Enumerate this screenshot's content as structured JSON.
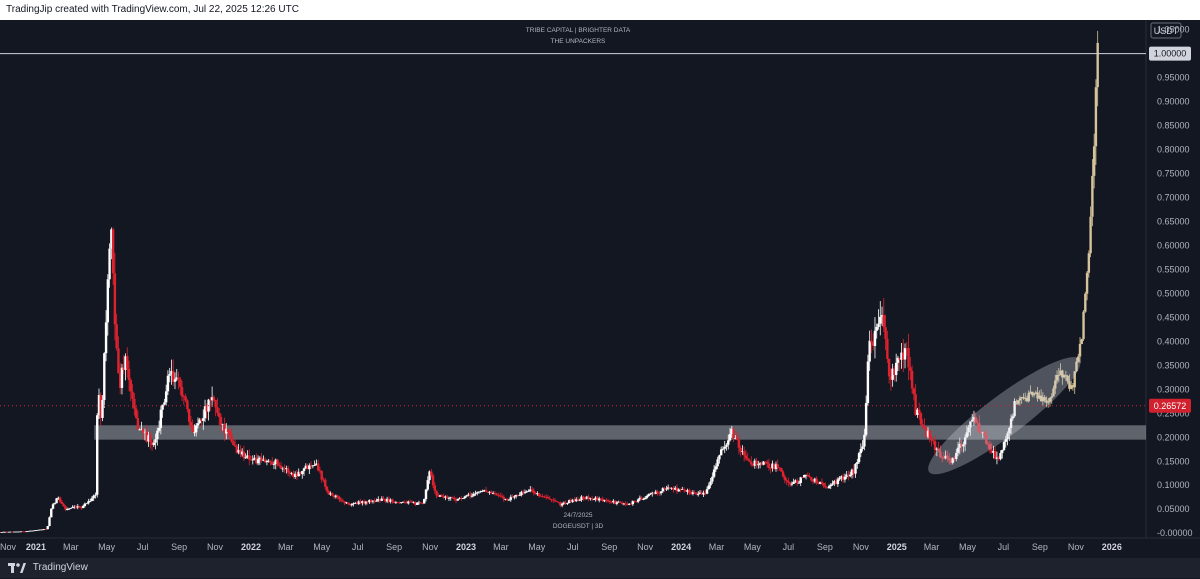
{
  "header": {
    "caption": "TradingJip created with TradingView.com, Jul 22, 2025 12:26 UTC"
  },
  "footer": {
    "brand": "TradingView",
    "logo_icon": "tradingview-logo-icon"
  },
  "colors": {
    "background": "#131722",
    "up_candle": "#ffffff",
    "down_candle": "#e0222f",
    "projection": "#d6c39a",
    "support_zone": "#c9ccd3",
    "current_price": "#d1202e"
  },
  "chart_data": {
    "type": "candlestick",
    "symbol": "DOGEUSDT | 3D",
    "unit": "USDT",
    "watermark": {
      "top_line1": "TRIBE CAPITAL | BRIGHTER DATA",
      "top_line2": "THE UNPACKERS",
      "bottom_date": "24/7/2025",
      "bottom_symbol": "DOGEUSDT | 3D"
    },
    "y_axis": {
      "ticks": [
        "-0.00000",
        "0.05000",
        "0.10000",
        "0.15000",
        "0.20000",
        "0.25000",
        "0.30000",
        "0.35000",
        "0.40000",
        "0.45000",
        "0.50000",
        "0.55000",
        "0.60000",
        "0.65000",
        "0.70000",
        "0.75000",
        "0.80000",
        "0.85000",
        "0.90000",
        "0.95000",
        "1.00000",
        "1.05000"
      ],
      "range": [
        -0.01,
        1.07
      ]
    },
    "x_axis": {
      "range": [
        "2020-11-01",
        "2026-02-28"
      ],
      "ticks": [
        {
          "label": "Nov",
          "date": "2020-11-01",
          "year": false
        },
        {
          "label": "2021",
          "date": "2021-01-01",
          "year": true
        },
        {
          "label": "Mar",
          "date": "2021-03-01",
          "year": false
        },
        {
          "label": "May",
          "date": "2021-05-01",
          "year": false
        },
        {
          "label": "Jul",
          "date": "2021-07-01",
          "year": false
        },
        {
          "label": "Sep",
          "date": "2021-09-01",
          "year": false
        },
        {
          "label": "Nov",
          "date": "2021-11-01",
          "year": false
        },
        {
          "label": "2022",
          "date": "2022-01-01",
          "year": true
        },
        {
          "label": "Mar",
          "date": "2022-03-01",
          "year": false
        },
        {
          "label": "May",
          "date": "2022-05-01",
          "year": false
        },
        {
          "label": "Jul",
          "date": "2022-07-01",
          "year": false
        },
        {
          "label": "Sep",
          "date": "2022-09-01",
          "year": false
        },
        {
          "label": "Nov",
          "date": "2022-11-01",
          "year": false
        },
        {
          "label": "2023",
          "date": "2023-01-01",
          "year": true
        },
        {
          "label": "Mar",
          "date": "2023-03-01",
          "year": false
        },
        {
          "label": "May",
          "date": "2023-05-01",
          "year": false
        },
        {
          "label": "Jul",
          "date": "2023-07-01",
          "year": false
        },
        {
          "label": "Sep",
          "date": "2023-09-01",
          "year": false
        },
        {
          "label": "Nov",
          "date": "2023-11-01",
          "year": false
        },
        {
          "label": "2024",
          "date": "2024-01-01",
          "year": true
        },
        {
          "label": "Mar",
          "date": "2024-03-01",
          "year": false
        },
        {
          "label": "May",
          "date": "2024-05-01",
          "year": false
        },
        {
          "label": "Jul",
          "date": "2024-07-01",
          "year": false
        },
        {
          "label": "Sep",
          "date": "2024-09-01",
          "year": false
        },
        {
          "label": "Nov",
          "date": "2024-11-01",
          "year": false
        },
        {
          "label": "2025",
          "date": "2025-01-01",
          "year": true
        },
        {
          "label": "Mar",
          "date": "2025-03-01",
          "year": false
        },
        {
          "label": "May",
          "date": "2025-05-01",
          "year": false
        },
        {
          "label": "Jul",
          "date": "2025-07-01",
          "year": false
        },
        {
          "label": "Sep",
          "date": "2025-09-01",
          "year": false
        },
        {
          "label": "Nov",
          "date": "2025-11-01",
          "year": false
        },
        {
          "label": "2026",
          "date": "2026-01-01",
          "year": true
        }
      ]
    },
    "horizontal_line": {
      "value": 1.0,
      "label": "1.00000"
    },
    "current_price": {
      "value": 0.26572,
      "label": "0.26572"
    },
    "support_zone": {
      "low": 0.195,
      "high": 0.225,
      "from": "2021-04-10",
      "to": "2026-02-28"
    },
    "highlight_ellipse": {
      "from": "2025-03-05",
      "to": "2025-10-30",
      "low_start": 0.135,
      "high_end": 0.355
    },
    "price_path": [
      [
        "2020-11-01",
        0.0025
      ],
      [
        "2020-12-15",
        0.004
      ],
      [
        "2021-01-20",
        0.009
      ],
      [
        "2021-01-28",
        0.055
      ],
      [
        "2021-02-08",
        0.075
      ],
      [
        "2021-02-20",
        0.05
      ],
      [
        "2021-03-20",
        0.055
      ],
      [
        "2021-04-12",
        0.08
      ],
      [
        "2021-04-16",
        0.3
      ],
      [
        "2021-04-22",
        0.24
      ],
      [
        "2021-05-02",
        0.5
      ],
      [
        "2021-05-08",
        0.63
      ],
      [
        "2021-05-14",
        0.48
      ],
      [
        "2021-05-22",
        0.3
      ],
      [
        "2021-06-01",
        0.37
      ],
      [
        "2021-06-20",
        0.23
      ],
      [
        "2021-07-20",
        0.18
      ],
      [
        "2021-08-16",
        0.33
      ],
      [
        "2021-09-06",
        0.3
      ],
      [
        "2021-09-22",
        0.21
      ],
      [
        "2021-10-28",
        0.28
      ],
      [
        "2021-11-15",
        0.22
      ],
      [
        "2021-12-10",
        0.17
      ],
      [
        "2022-01-10",
        0.15
      ],
      [
        "2022-02-10",
        0.15
      ],
      [
        "2022-03-15",
        0.12
      ],
      [
        "2022-04-20",
        0.15
      ],
      [
        "2022-05-12",
        0.085
      ],
      [
        "2022-06-15",
        0.06
      ],
      [
        "2022-08-10",
        0.07
      ],
      [
        "2022-10-20",
        0.06
      ],
      [
        "2022-11-01",
        0.13
      ],
      [
        "2022-11-10",
        0.08
      ],
      [
        "2022-12-20",
        0.07
      ],
      [
        "2023-02-01",
        0.09
      ],
      [
        "2023-03-10",
        0.07
      ],
      [
        "2023-04-18",
        0.09
      ],
      [
        "2023-06-10",
        0.06
      ],
      [
        "2023-07-20",
        0.075
      ],
      [
        "2023-10-01",
        0.06
      ],
      [
        "2023-12-10",
        0.095
      ],
      [
        "2024-02-10",
        0.08
      ],
      [
        "2024-03-05",
        0.16
      ],
      [
        "2024-03-28",
        0.21
      ],
      [
        "2024-04-20",
        0.15
      ],
      [
        "2024-06-10",
        0.14
      ],
      [
        "2024-07-05",
        0.1
      ],
      [
        "2024-08-01",
        0.12
      ],
      [
        "2024-09-05",
        0.095
      ],
      [
        "2024-10-20",
        0.13
      ],
      [
        "2024-11-08",
        0.2
      ],
      [
        "2024-11-14",
        0.39
      ],
      [
        "2024-12-08",
        0.45
      ],
      [
        "2024-12-20",
        0.32
      ],
      [
        "2025-01-18",
        0.38
      ],
      [
        "2025-02-03",
        0.25
      ],
      [
        "2025-03-10",
        0.17
      ],
      [
        "2025-04-07",
        0.15
      ],
      [
        "2025-05-12",
        0.24
      ],
      [
        "2025-06-22",
        0.15
      ],
      [
        "2025-07-20",
        0.2657
      ]
    ],
    "projection_path": [
      [
        "2025-07-23",
        0.27
      ],
      [
        "2025-08-20",
        0.29
      ],
      [
        "2025-09-15",
        0.27
      ],
      [
        "2025-10-05",
        0.34
      ],
      [
        "2025-10-25",
        0.3
      ],
      [
        "2025-11-05",
        0.37
      ],
      [
        "2025-11-12",
        0.42
      ],
      [
        "2025-11-20",
        0.55
      ],
      [
        "2025-11-26",
        0.65
      ],
      [
        "2025-12-02",
        0.8
      ],
      [
        "2025-12-05",
        0.95
      ],
      [
        "2025-12-08",
        1.0
      ]
    ]
  }
}
